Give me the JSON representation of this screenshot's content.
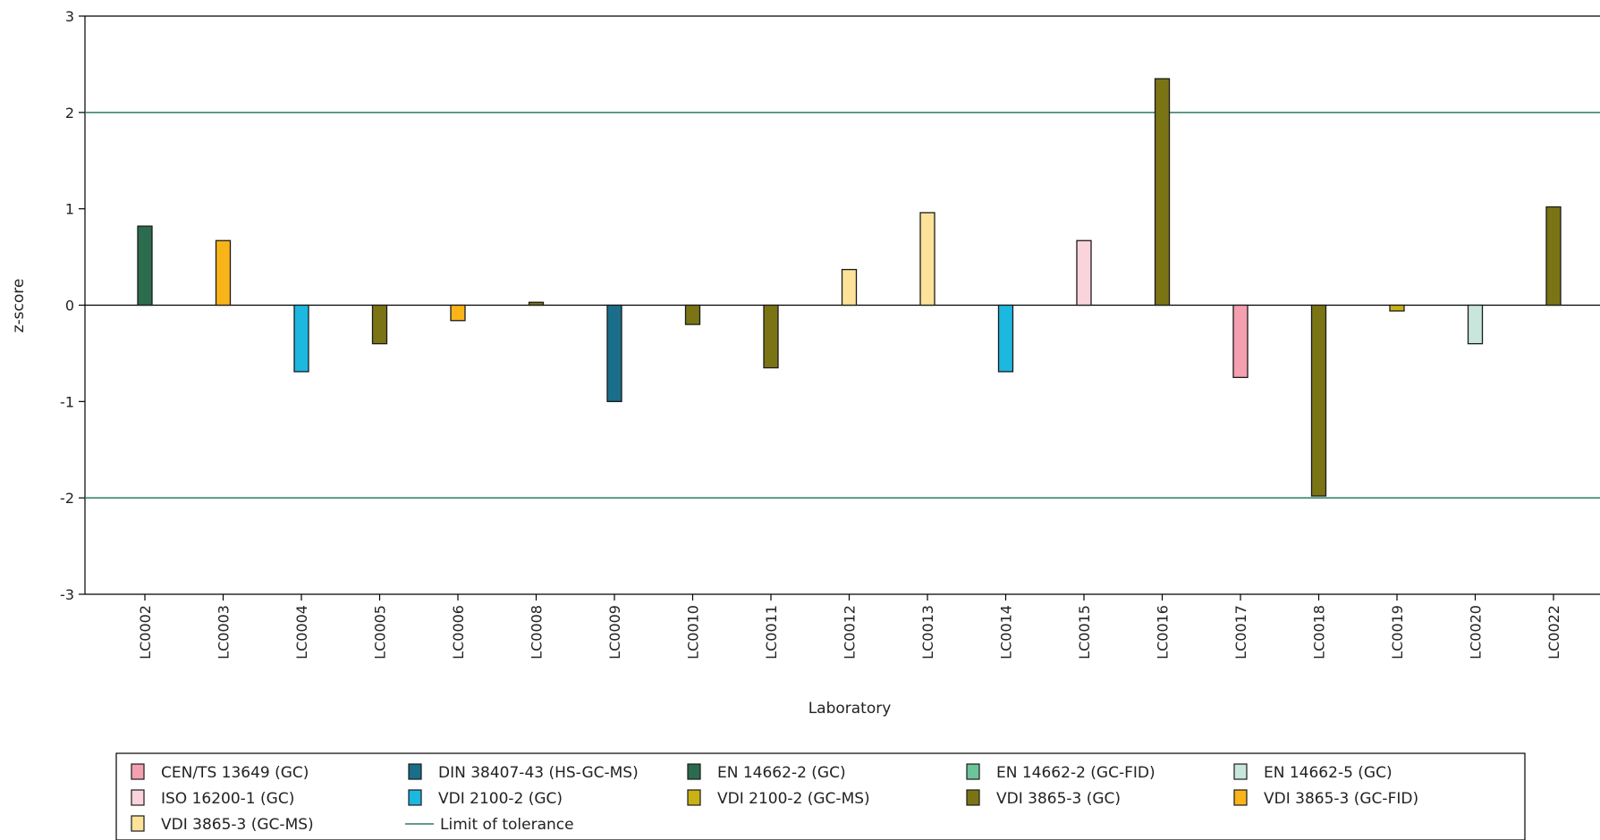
{
  "chart_data": {
    "type": "bar",
    "title": "",
    "xlabel": "Laboratory",
    "ylabel": "z-score",
    "ylim": [
      -3,
      3
    ],
    "yticks": [
      -3,
      -2,
      -1,
      0,
      1,
      2,
      3
    ],
    "grid": false,
    "legend_position": "bottom",
    "limit_of_tolerance": {
      "name": "Limit of tolerance",
      "values": [
        2,
        -2
      ],
      "color": "#2e7d5b"
    },
    "methods": [
      {
        "name": "CEN/TS 13649 (GC)",
        "color": "#f4a0b0"
      },
      {
        "name": "DIN 38407-43 (HS-GC-MS)",
        "color": "#1a6e8a"
      },
      {
        "name": "EN 14662-2 (GC)",
        "color": "#2d6b4e"
      },
      {
        "name": "EN 14662-2 (GC-FID)",
        "color": "#6cc49a"
      },
      {
        "name": "EN 14662-5 (GC)",
        "color": "#c8e6dc"
      },
      {
        "name": "ISO 16200-1 (GC)",
        "color": "#fad4dc"
      },
      {
        "name": "VDI 2100-2 (GC)",
        "color": "#1cb8e0"
      },
      {
        "name": "VDI 2100-2 (GC-MS)",
        "color": "#c8b214"
      },
      {
        "name": "VDI 3865-3 (GC)",
        "color": "#7b7415"
      },
      {
        "name": "VDI 3865-3 (GC-FID)",
        "color": "#f8b418"
      },
      {
        "name": "VDI 3865-3 (GC-MS)",
        "color": "#fde29a"
      }
    ],
    "categories": [
      "LC0002",
      "LC0003",
      "LC0004",
      "LC0005",
      "LC0006",
      "LC0008",
      "LC0009",
      "LC0010",
      "LC0011",
      "LC0012",
      "LC0013",
      "LC0014",
      "LC0015",
      "LC0016",
      "LC0017",
      "LC0018",
      "LC0019",
      "LC0020",
      "LC0022"
    ],
    "values": [
      0.82,
      0.67,
      -0.69,
      -0.4,
      -0.16,
      0.03,
      -1.0,
      -0.2,
      -0.65,
      0.37,
      0.96,
      -0.69,
      0.67,
      2.35,
      -0.75,
      -1.98,
      -0.06,
      -0.4,
      1.02
    ],
    "bar_methods": [
      2,
      9,
      6,
      8,
      9,
      8,
      1,
      8,
      8,
      10,
      10,
      6,
      5,
      8,
      0,
      8,
      7,
      4,
      8
    ]
  }
}
